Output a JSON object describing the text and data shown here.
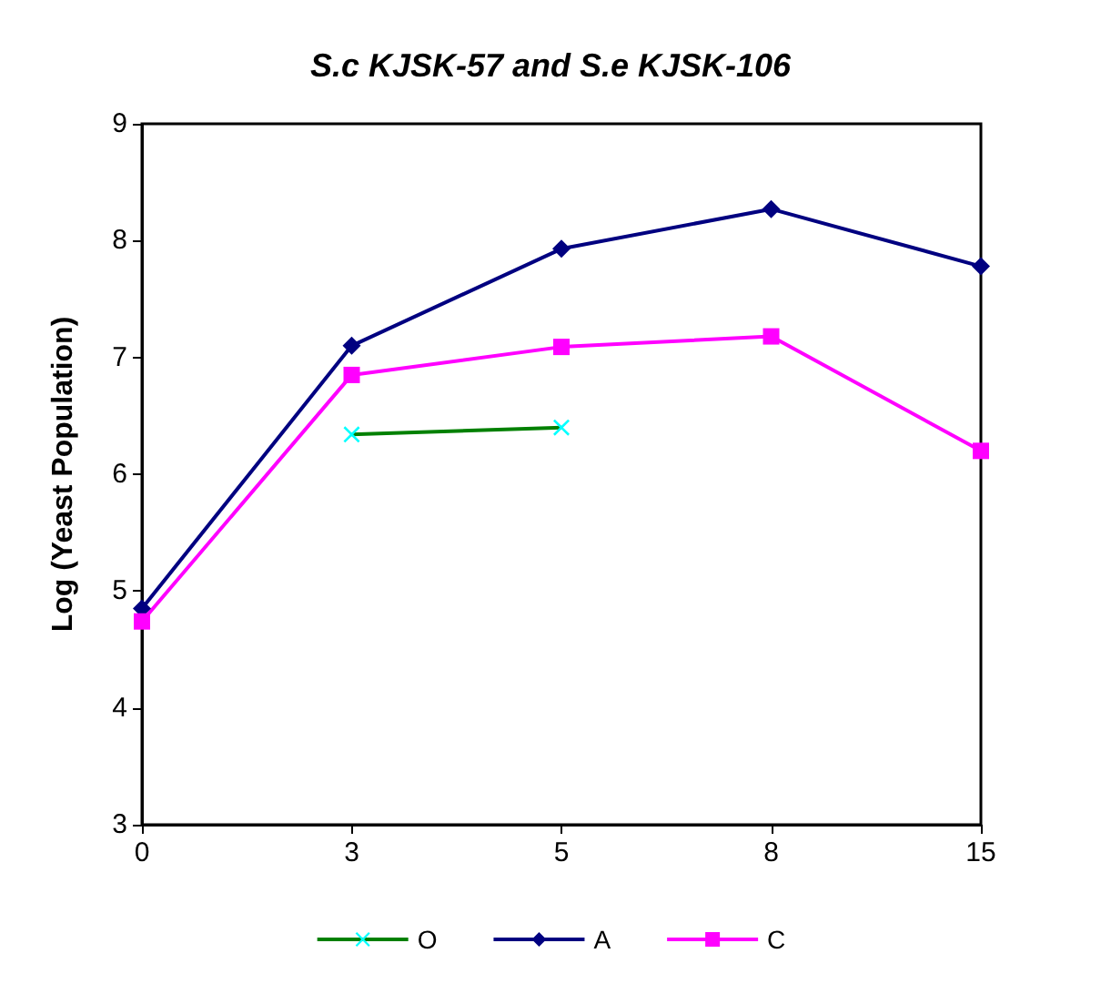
{
  "chart_data": {
    "type": "line",
    "title": "S.c KJSK-57 and S.e KJSK-106",
    "ylabel": "Log (Yeast Population)",
    "categories": [
      "0",
      "3",
      "5",
      "8",
      "15"
    ],
    "series": [
      {
        "name": "O",
        "color": "#008000",
        "colors": [
          "#00ffff",
          "#00ffff",
          "#00ffff",
          "#00ffff",
          "#00ffff"
        ],
        "marker": "cross",
        "values": [
          null,
          6.34,
          6.4,
          null,
          null
        ]
      },
      {
        "name": "A",
        "color": "#000080",
        "marker": "diamond",
        "values": [
          4.85,
          7.1,
          7.93,
          8.27,
          7.78
        ]
      },
      {
        "name": "C",
        "color": "#ff00ff",
        "marker": "square",
        "values": [
          4.74,
          6.85,
          7.09,
          7.18,
          6.2
        ]
      }
    ],
    "ylim": [
      3,
      9
    ],
    "yticks": [
      3,
      4,
      5,
      6,
      7,
      8,
      9
    ],
    "grid": false,
    "legend": "bottom"
  }
}
